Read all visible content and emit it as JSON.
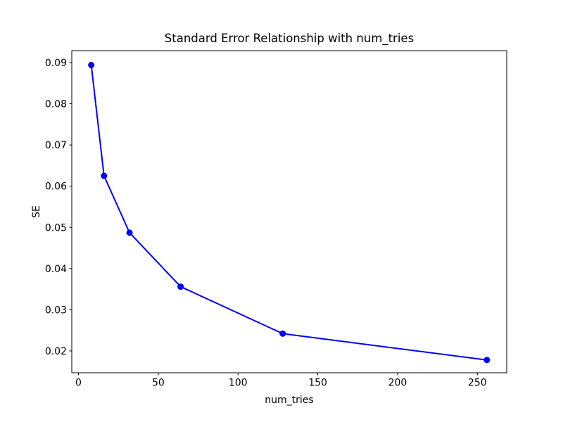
{
  "figure": {
    "background": "#ffffff"
  },
  "chart_data": {
    "type": "line",
    "title": "Standard Error Relationship with num_tries",
    "xlabel": "num_tries",
    "ylabel": "SE",
    "x": [
      8,
      16,
      32,
      64,
      128,
      256
    ],
    "y": [
      0.0894,
      0.0625,
      0.0487,
      0.0356,
      0.0242,
      0.0178
    ],
    "xticks": [
      0,
      50,
      100,
      150,
      200,
      250
    ],
    "xtick_labels": [
      "0",
      "50",
      "100",
      "150",
      "200",
      "250"
    ],
    "yticks": [
      0.02,
      0.03,
      0.04,
      0.05,
      0.06,
      0.07,
      0.08,
      0.09
    ],
    "ytick_labels": [
      "0.02",
      "0.03",
      "0.04",
      "0.05",
      "0.06",
      "0.07",
      "0.08",
      "0.09"
    ],
    "xlim": [
      -4.2,
      268.4
    ],
    "ylim": [
      0.0147,
      0.0929
    ],
    "grid": false,
    "legend": "none",
    "line_color": "#0000ff",
    "marker": "circle",
    "marker_color": "#0000ff",
    "axis_color": "#000000"
  }
}
